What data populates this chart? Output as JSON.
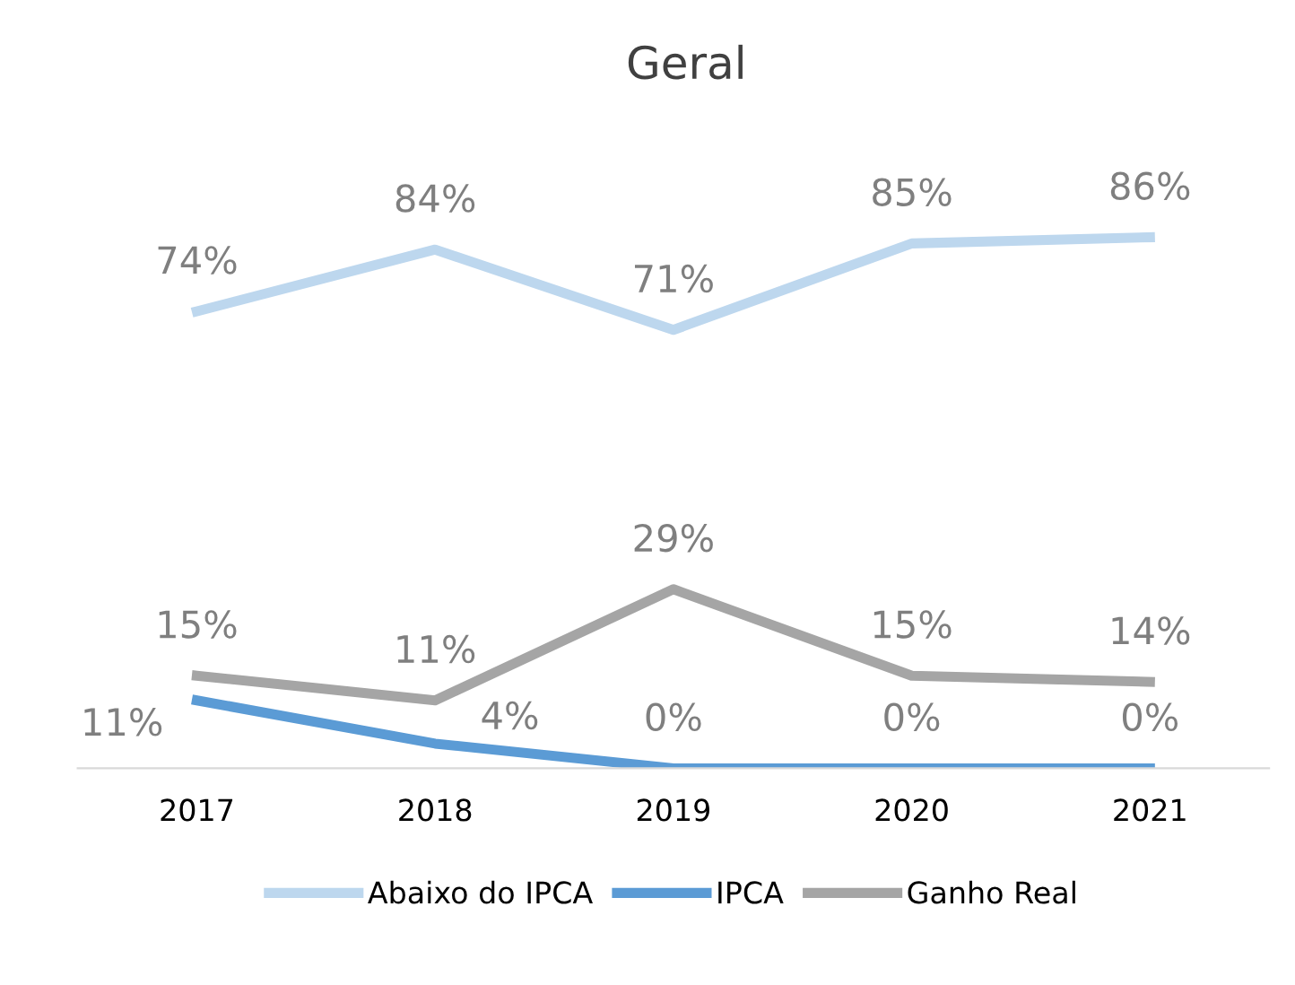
{
  "chart_data": {
    "type": "line",
    "title": "Geral",
    "categories": [
      "2017",
      "2018",
      "2019",
      "2020",
      "2021"
    ],
    "series": [
      {
        "name": "Abaixo do IPCA",
        "color": "#bdd7ee",
        "values": [
          74,
          84,
          71,
          85,
          86
        ],
        "value_labels": [
          "74%",
          "84%",
          "71%",
          "85%",
          "86%"
        ]
      },
      {
        "name": "IPCA",
        "color": "#5b9bd5",
        "values": [
          11,
          4,
          0,
          0,
          0
        ],
        "value_labels": [
          "11%",
          "4%",
          "0%",
          "0%",
          "0%"
        ]
      },
      {
        "name": "Ganho Real",
        "color": "#a5a5a5",
        "values": [
          15,
          11,
          29,
          15,
          14
        ],
        "value_labels": [
          "15%",
          "11%",
          "29%",
          "15%",
          "14%"
        ]
      }
    ],
    "grid": false,
    "legend": "bottom",
    "marker": "none",
    "line_style": "solid"
  }
}
